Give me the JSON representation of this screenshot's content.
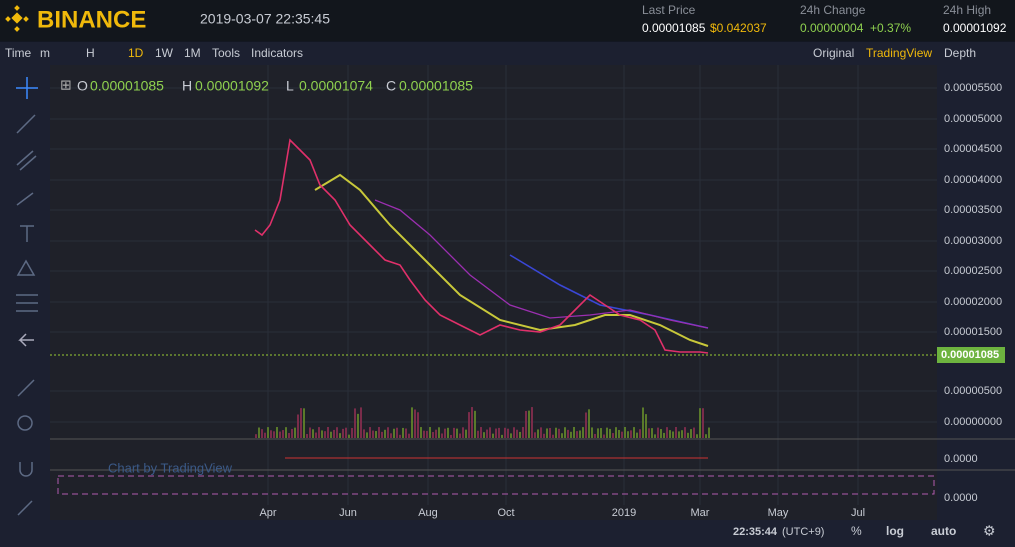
{
  "header": {
    "logo": "BINANCE",
    "datetime": "2019-03-07 22:35:45",
    "last_price": {
      "label": "Last Price",
      "value": "0.00001085",
      "usd": "$0.042037"
    },
    "change": {
      "label": "24h Change",
      "value": "0.00000004",
      "percent": "+0.37%"
    },
    "high": {
      "label": "24h High",
      "value": "0.00001092"
    }
  },
  "toolbar": {
    "left": [
      "Time",
      "m",
      "H",
      "1D",
      "1W",
      "1M",
      "Tools",
      "Indicators"
    ],
    "right": [
      "Original",
      "TradingView",
      "Depth"
    ]
  },
  "ohlc": [
    {
      "key": "O",
      "value": "0.00001085"
    },
    {
      "key": "H",
      "value": "0.00001092"
    },
    {
      "key": "L",
      "value": "0.00001074"
    },
    {
      "key": "C",
      "value": "0.00001085"
    }
  ],
  "price_axis": [
    "0.00005500",
    "0.00005000",
    "0.00004500",
    "0.00004000",
    "0.00003500",
    "0.00003000",
    "0.00002500",
    "0.00002000",
    "0.00001500",
    "0.00000500",
    "0.00000000"
  ],
  "current_price": "0.00001085",
  "lower_axis": [
    "0.0000",
    "0.0000"
  ],
  "watermark": "Chart by TradingView",
  "time_axis": [
    "Apr",
    "Jun",
    "Aug",
    "Oct",
    "2019",
    "Mar",
    "May",
    "Jul"
  ],
  "footer": {
    "time": "22:35:44",
    "tz": "(UTC+9)",
    "percent": "%",
    "log": "log",
    "auto": "auto"
  }
}
